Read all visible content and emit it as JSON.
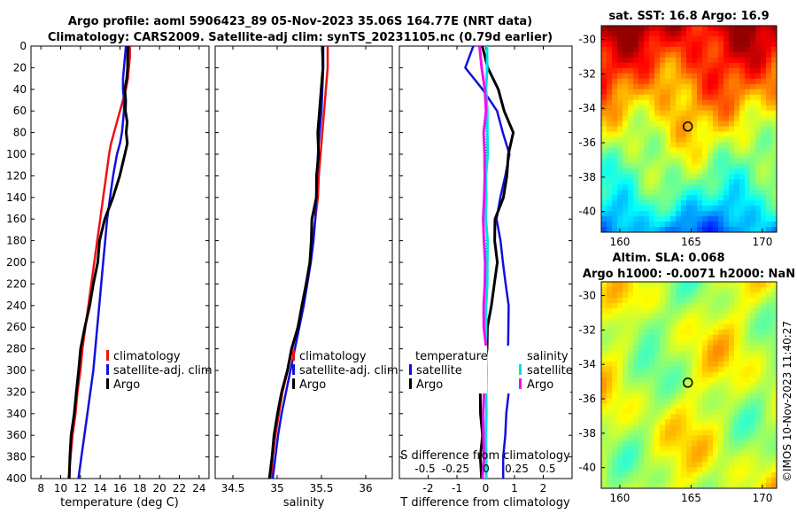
{
  "titles": {
    "line1": "Argo profile: aoml 5906423_89 05-Nov-2023 35.06S 164.77E (NRT data)",
    "line2": "Climatology: CARS2009. Satellite-adj clim: synTS_20231105.nc (0.79d earlier)"
  },
  "watermark": "©IMOS 10-Nov-2023 11:40:27",
  "colors": {
    "climatology": "#ee1111",
    "satellite": "#1010dd",
    "argo": "#000000",
    "sat_s": "#00e0e0",
    "argo_s": "#ee10ee"
  },
  "chart_data": [
    {
      "type": "line",
      "id": "temperature",
      "xlabel": "temperature (deg C)",
      "ylabel": "",
      "xlim": [
        7,
        25
      ],
      "ylim": [
        400,
        0
      ],
      "xticks": [
        "8",
        "10",
        "12",
        "14",
        "16",
        "18",
        "20",
        "22",
        "24"
      ],
      "yticks": [
        "0",
        "20",
        "40",
        "60",
        "80",
        "100",
        "120",
        "140",
        "160",
        "180",
        "200",
        "220",
        "240",
        "260",
        "280",
        "300",
        "320",
        "340",
        "360",
        "380",
        "400"
      ],
      "legend": [
        "climatology",
        "satellite-adj. clim",
        "Argo"
      ],
      "depth": [
        0,
        10,
        20,
        30,
        40,
        50,
        60,
        70,
        80,
        90,
        100,
        120,
        140,
        160,
        180,
        200,
        220,
        240,
        260,
        280,
        300,
        320,
        340,
        360,
        380,
        400
      ],
      "series": [
        {
          "name": "climatology",
          "values": [
            17.0,
            17.0,
            16.9,
            16.8,
            16.6,
            16.3,
            16.0,
            15.7,
            15.4,
            15.1,
            14.9,
            14.6,
            14.3,
            14.0,
            13.7,
            13.4,
            13.1,
            12.8,
            12.5,
            12.2,
            12.0,
            11.7,
            11.5,
            11.2,
            11.0,
            10.8
          ]
        },
        {
          "name": "satellite-adj. clim",
          "values": [
            16.6,
            16.5,
            16.4,
            16.3,
            16.3,
            16.4,
            16.4,
            16.3,
            16.2,
            16.0,
            15.7,
            15.3,
            15.0,
            14.7,
            14.5,
            14.3,
            14.1,
            13.9,
            13.7,
            13.5,
            13.3,
            13.0,
            12.7,
            12.4,
            12.1,
            11.8
          ]
        },
        {
          "name": "Argo",
          "values": [
            16.9,
            16.8,
            16.8,
            16.7,
            16.5,
            16.5,
            16.6,
            16.7,
            16.7,
            16.7,
            16.5,
            16.0,
            15.3,
            14.5,
            14.0,
            13.7,
            13.3,
            12.9,
            12.5,
            12.0,
            11.8,
            11.5,
            11.3,
            11.1,
            10.9,
            10.8
          ]
        }
      ]
    },
    {
      "type": "line",
      "id": "salinity",
      "xlabel": "salinity",
      "xlim": [
        34.3,
        36.3
      ],
      "ylim": [
        400,
        0
      ],
      "xticks": [
        "34.5",
        "35",
        "35.5",
        "36"
      ],
      "legend": [
        "climatology",
        "satellite-adj. clim",
        "Argo"
      ],
      "depth": [
        0,
        20,
        40,
        60,
        80,
        100,
        120,
        140,
        160,
        180,
        200,
        220,
        240,
        260,
        280,
        300,
        320,
        340,
        360,
        380,
        400
      ],
      "series": [
        {
          "name": "climatology",
          "values": [
            35.57,
            35.57,
            35.55,
            35.53,
            35.51,
            35.49,
            35.47,
            35.46,
            35.43,
            35.4,
            35.37,
            35.33,
            35.28,
            35.23,
            35.17,
            35.12,
            35.06,
            35.02,
            34.98,
            34.95,
            34.93
          ]
        },
        {
          "name": "satellite-adj. clim",
          "values": [
            35.52,
            35.52,
            35.51,
            35.5,
            35.48,
            35.46,
            35.45,
            35.44,
            35.43,
            35.41,
            35.38,
            35.34,
            35.3,
            35.25,
            35.2,
            35.15,
            35.1,
            35.05,
            35.01,
            34.98,
            34.95
          ]
        },
        {
          "name": "Argo",
          "values": [
            35.52,
            35.52,
            35.5,
            35.48,
            35.46,
            35.46,
            35.45,
            35.44,
            35.4,
            35.38,
            35.37,
            35.33,
            35.28,
            35.24,
            35.17,
            35.11,
            35.05,
            35.0,
            34.97,
            34.94,
            34.91
          ]
        }
      ]
    },
    {
      "type": "line",
      "id": "difference",
      "xlabel": "T difference from climatology",
      "xlabel_top": "S difference from climatology",
      "xlim": [
        -3,
        3
      ],
      "ylim": [
        400,
        0
      ],
      "xticks": [
        "-2",
        "-1",
        "0",
        "1",
        "2"
      ],
      "top_ticks": [
        "-0.5",
        "-0.25",
        "0",
        "0.25",
        "0.5"
      ],
      "legend_titles": [
        "temperature",
        "salinity"
      ],
      "legend": [
        "satellite",
        "Argo",
        "satellite",
        "Argo"
      ],
      "depth": [
        0,
        20,
        40,
        60,
        80,
        100,
        120,
        140,
        160,
        180,
        200,
        220,
        240,
        260,
        280,
        300,
        320,
        340,
        360,
        380,
        400
      ],
      "series": [
        {
          "name": "T satellite",
          "values": [
            -0.4,
            -0.7,
            -0.1,
            0.4,
            0.6,
            0.8,
            0.7,
            0.5,
            0.4,
            0.5,
            0.6,
            0.7,
            0.8,
            0.8,
            0.8,
            0.8,
            0.8,
            0.7,
            0.7,
            0.6,
            0.6
          ]
        },
        {
          "name": "T Argo",
          "values": [
            -0.1,
            0.1,
            0.4,
            0.6,
            1.0,
            0.8,
            0.7,
            0.6,
            0.3,
            0.3,
            0.4,
            0.3,
            0.2,
            0.1,
            0.0,
            -0.1,
            -0.2,
            -0.2,
            -0.1,
            -0.2,
            -0.1
          ]
        },
        {
          "name": "S satellite",
          "values": [
            0.01,
            0.01,
            0.0,
            0.01,
            0.01,
            0.01,
            0.0,
            0.0,
            0.0,
            0.01,
            0.01,
            0.01,
            0.0,
            0.0,
            0.0,
            0.0,
            0.0,
            0.0,
            0.0,
            0.0,
            0.0
          ]
        },
        {
          "name": "S Argo",
          "values": [
            -0.05,
            -0.03,
            -0.02,
            -0.01,
            -0.01,
            -0.01,
            -0.02,
            -0.02,
            -0.03,
            -0.02,
            -0.01,
            -0.01,
            -0.02,
            -0.01,
            -0.01,
            -0.02,
            -0.02,
            -0.03,
            -0.02,
            -0.02,
            -0.02
          ]
        }
      ]
    },
    {
      "type": "heatmap",
      "id": "sst_map",
      "title": "sat. SST: 16.8 Argo: 16.9",
      "xlim": [
        158.7,
        171
      ],
      "ylim": [
        -41.2,
        -29.2
      ],
      "xticks": [
        "160",
        "165",
        "170"
      ],
      "yticks": [
        "-30",
        "-32",
        "-34",
        "-36",
        "-38",
        "-40"
      ],
      "argo_position": [
        164.77,
        -35.06
      ]
    },
    {
      "type": "heatmap",
      "id": "sla_map",
      "title_line1": "Altim. SLA: 0.068",
      "title_line2": "Argo h1000: -0.0071 h2000: NaN",
      "xlim": [
        158.7,
        171
      ],
      "ylim": [
        -41.2,
        -29.2
      ],
      "xticks": [
        "160",
        "165",
        "170"
      ],
      "yticks": [
        "-30",
        "-32",
        "-34",
        "-36",
        "-38",
        "-40"
      ],
      "argo_position": [
        164.77,
        -35.06
      ]
    }
  ]
}
